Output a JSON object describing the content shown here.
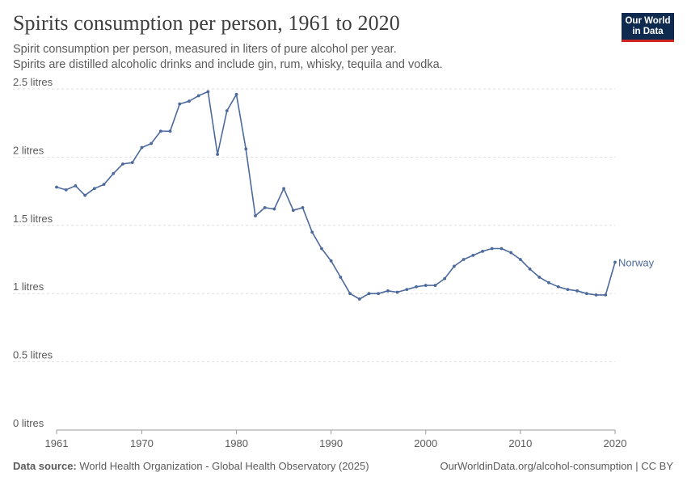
{
  "header": {
    "title": "Spirits consumption per person, 1961 to 2020",
    "subtitle_line1": "Spirit consumption per person, measured in liters of pure alcohol per year.",
    "subtitle_line2": "Spirits are distilled alcoholic drinks and include gin, rum, whisky, tequila and vodka."
  },
  "logo": {
    "line1": "Our World",
    "line2": "in Data"
  },
  "footer": {
    "source_label": "Data source:",
    "source_text": "World Health Organization - Global Health Observatory (2025)",
    "url_text": "OurWorldinData.org/alcohol-consumption | CC BY"
  },
  "colors": {
    "series": "#4c6a9c",
    "grid": "#dddddd",
    "text": "#5b5b5b",
    "logo_bg": "#0f2a4f",
    "logo_accent": "#ce261e"
  },
  "chart_data": {
    "type": "line",
    "xlim": [
      1961,
      2020
    ],
    "ylim": [
      0,
      2.5
    ],
    "grid": true,
    "legend": "end-of-line label",
    "y_ticks": [
      {
        "value": 0,
        "label": "0 litres"
      },
      {
        "value": 0.5,
        "label": "0.5 litres"
      },
      {
        "value": 1,
        "label": "1 litres"
      },
      {
        "value": 1.5,
        "label": "1.5 litres"
      },
      {
        "value": 2,
        "label": "2 litres"
      },
      {
        "value": 2.5,
        "label": "2.5 litres"
      }
    ],
    "x_ticks": [
      {
        "value": 1961,
        "label": "1961"
      },
      {
        "value": 1970,
        "label": "1970"
      },
      {
        "value": 1980,
        "label": "1980"
      },
      {
        "value": 1990,
        "label": "1990"
      },
      {
        "value": 2000,
        "label": "2000"
      },
      {
        "value": 2010,
        "label": "2010"
      },
      {
        "value": 2020,
        "label": "2020"
      }
    ],
    "series": [
      {
        "name": "Norway",
        "color": "#4c6a9c",
        "x": [
          1961,
          1962,
          1963,
          1964,
          1965,
          1966,
          1967,
          1968,
          1969,
          1970,
          1971,
          1972,
          1973,
          1974,
          1975,
          1976,
          1977,
          1978,
          1979,
          1980,
          1981,
          1982,
          1983,
          1984,
          1985,
          1986,
          1987,
          1988,
          1989,
          1990,
          1991,
          1992,
          1993,
          1994,
          1995,
          1996,
          1997,
          1998,
          1999,
          2000,
          2001,
          2002,
          2003,
          2004,
          2005,
          2006,
          2007,
          2008,
          2009,
          2010,
          2011,
          2012,
          2013,
          2014,
          2015,
          2016,
          2017,
          2018,
          2019,
          2020
        ],
        "y": [
          1.78,
          1.76,
          1.79,
          1.72,
          1.77,
          1.8,
          1.88,
          1.95,
          1.96,
          2.07,
          2.1,
          2.19,
          2.19,
          2.39,
          2.41,
          2.45,
          2.48,
          2.02,
          2.34,
          2.46,
          2.06,
          1.57,
          1.63,
          1.62,
          1.77,
          1.61,
          1.63,
          1.45,
          1.33,
          1.24,
          1.12,
          1.0,
          0.96,
          1.0,
          1.0,
          1.02,
          1.01,
          1.03,
          1.05,
          1.06,
          1.06,
          1.11,
          1.2,
          1.25,
          1.28,
          1.31,
          1.33,
          1.33,
          1.3,
          1.25,
          1.18,
          1.12,
          1.08,
          1.05,
          1.03,
          1.02,
          1.0,
          0.99,
          0.99,
          1.23
        ]
      }
    ]
  }
}
